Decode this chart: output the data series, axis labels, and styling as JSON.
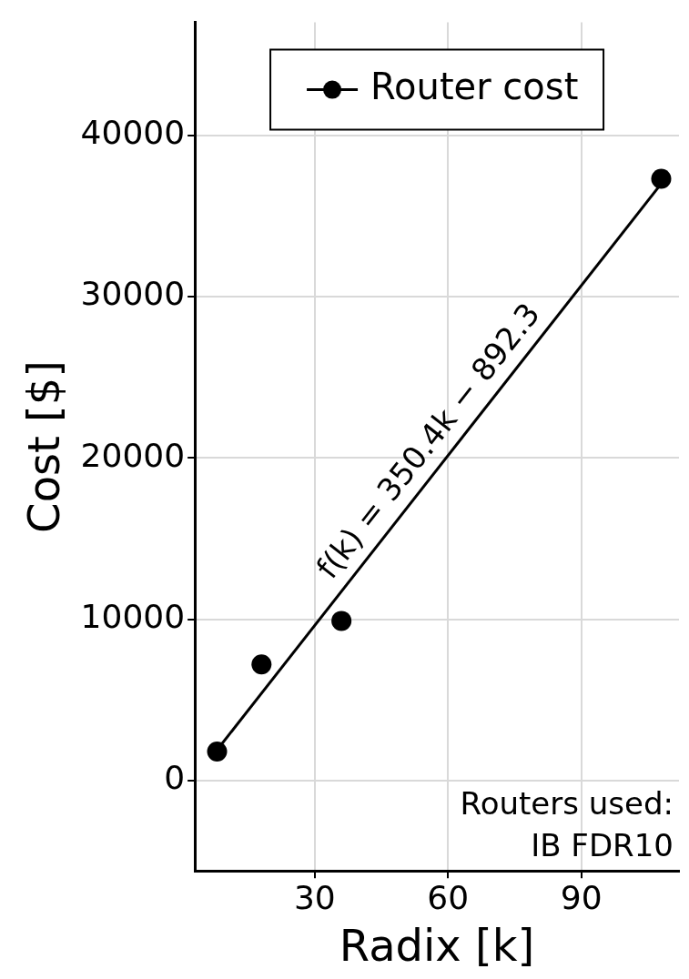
{
  "chart_data": {
    "type": "scatter",
    "xlabel": "Radix [k]",
    "ylabel": "Cost [$]",
    "xlim": [
      3,
      112
    ],
    "xticks": [
      30,
      60,
      90
    ],
    "ylim": [
      -5600,
      47000
    ],
    "yticks": [
      0,
      10000,
      20000,
      30000,
      40000
    ],
    "grid": true,
    "legend": "top",
    "series": [
      {
        "name": "Router cost",
        "type": "scatter",
        "color": "#000000",
        "marker": "circle",
        "x": [
          8,
          18,
          36,
          108
        ],
        "values": [
          1800,
          7200,
          9900,
          37300
        ]
      },
      {
        "type": "line",
        "color": "#000000",
        "marker": "none",
        "line_style": "solid",
        "x": [
          8,
          108
        ],
        "values": [
          1900,
          37000
        ]
      }
    ],
    "annotations": [
      {
        "text": "f(k) = 350.4k − 892.3",
        "x": 60,
        "y": 20100
      },
      "Routers used:",
      "IB FDR10"
    ]
  }
}
